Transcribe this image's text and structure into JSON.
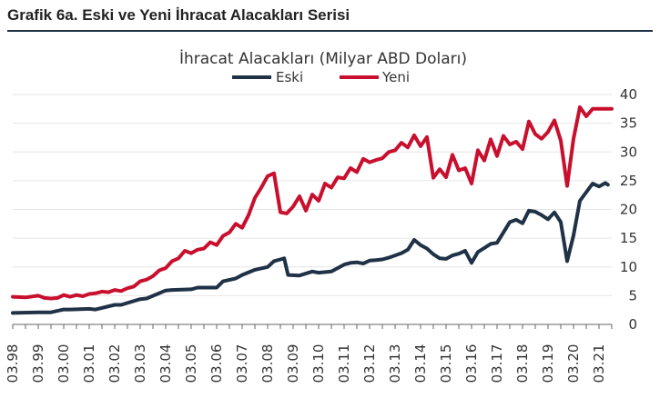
{
  "figure": {
    "title": "Grafik 6a. Eski ve Yeni İhracat Alacakları Serisi"
  },
  "colors": {
    "eski": "#1f3246",
    "yeni": "#c8102e",
    "grid": "#e6e6e6",
    "rule": "#1f3246"
  },
  "chart_data": {
    "type": "line",
    "title": "İhracat Alacakları (Milyar ABD Doları)",
    "xlabel": "",
    "ylabel": "",
    "ylim": [
      0,
      40
    ],
    "y_ticks": [
      0,
      5,
      10,
      15,
      20,
      25,
      30,
      35,
      40
    ],
    "y_axis_side": "right",
    "grid": "horizontal",
    "legend_placement": "top-center",
    "x_ticks": [
      "03.98",
      "03.99",
      "03.00",
      "03.01",
      "03.02",
      "03.03",
      "03.04",
      "03.05",
      "03.06",
      "03.07",
      "03.08",
      "03.09",
      "03.10",
      "03.11",
      "03.12",
      "03.13",
      "03.14",
      "03.15",
      "03.16",
      "03.17",
      "03.18",
      "03.19",
      "03.20",
      "03.21"
    ],
    "x_start": 1998.0,
    "x_end": 2021.5,
    "series": [
      {
        "name": "Eski",
        "color": "#1f3246",
        "x": [
          1998.0,
          1999.0,
          1999.5,
          2000.0,
          2000.25,
          2001.0,
          2001.25,
          2002.0,
          2002.25,
          2003.0,
          2003.25,
          2004.0,
          2004.25,
          2005.0,
          2005.25,
          2006.0,
          2006.25,
          2006.75,
          2007.0,
          2007.5,
          2008.0,
          2008.25,
          2008.5,
          2008.65,
          2008.8,
          2009.25,
          2009.75,
          2010.0,
          2010.5,
          2011.0,
          2011.25,
          2011.5,
          2011.75,
          2012.0,
          2012.25,
          2012.5,
          2012.75,
          2013.0,
          2013.25,
          2013.5,
          2013.75,
          2014.0,
          2014.25,
          2014.5,
          2014.75,
          2015.0,
          2015.25,
          2015.5,
          2015.75,
          2016.0,
          2016.25,
          2016.5,
          2016.75,
          2017.0,
          2017.25,
          2017.5,
          2017.75,
          2018.0,
          2018.25,
          2018.5,
          2018.75,
          2019.0,
          2019.25,
          2019.5,
          2019.75,
          2020.0,
          2020.25,
          2020.5,
          2020.75,
          2021.0,
          2021.25,
          2021.35
        ],
        "values": [
          2.0,
          2.1,
          2.1,
          2.6,
          2.6,
          2.7,
          2.6,
          3.4,
          3.4,
          4.4,
          4.5,
          5.9,
          6.0,
          6.1,
          6.4,
          6.4,
          7.5,
          8.0,
          8.6,
          9.5,
          10.0,
          11.0,
          11.3,
          11.5,
          8.6,
          8.5,
          9.2,
          9.0,
          9.2,
          10.4,
          10.7,
          10.8,
          10.6,
          11.1,
          11.2,
          11.3,
          11.6,
          12.0,
          12.4,
          13.0,
          14.7,
          13.8,
          13.2,
          12.2,
          11.5,
          11.4,
          12.0,
          12.3,
          12.8,
          10.7,
          12.6,
          13.3,
          14.0,
          14.2,
          16.0,
          17.8,
          18.2,
          17.6,
          19.8,
          19.6,
          19.0,
          18.3,
          19.5,
          17.8,
          11.0,
          15.5,
          21.5,
          23.0,
          24.5,
          24.0,
          24.6,
          24.3
        ],
        "note_x": "decimal years"
      },
      {
        "name": "Yeni",
        "color": "#c8102e",
        "x": [
          1998.0,
          1998.5,
          1999.0,
          1999.25,
          1999.5,
          1999.75,
          2000.0,
          2000.25,
          2000.5,
          2000.75,
          2001.0,
          2001.25,
          2001.5,
          2001.75,
          2002.0,
          2002.25,
          2002.5,
          2002.75,
          2003.0,
          2003.25,
          2003.5,
          2003.75,
          2004.0,
          2004.25,
          2004.5,
          2004.75,
          2005.0,
          2005.25,
          2005.5,
          2005.75,
          2006.0,
          2006.25,
          2006.5,
          2006.75,
          2007.0,
          2007.25,
          2007.5,
          2007.75,
          2008.0,
          2008.25,
          2008.5,
          2008.75,
          2009.0,
          2009.25,
          2009.5,
          2009.75,
          2010.0,
          2010.25,
          2010.5,
          2010.75,
          2011.0,
          2011.25,
          2011.5,
          2011.75,
          2012.0,
          2012.25,
          2012.5,
          2012.75,
          2013.0,
          2013.25,
          2013.5,
          2013.75,
          2014.0,
          2014.25,
          2014.5,
          2014.75,
          2015.0,
          2015.25,
          2015.5,
          2015.75,
          2016.0,
          2016.25,
          2016.5,
          2016.75,
          2017.0,
          2017.25,
          2017.5,
          2017.75,
          2018.0,
          2018.25,
          2018.5,
          2018.75,
          2019.0,
          2019.25,
          2019.5,
          2019.75,
          2020.0,
          2020.25,
          2020.5,
          2020.75,
          2021.0,
          2021.25,
          2021.5
        ],
        "values": [
          4.8,
          4.7,
          5.0,
          4.6,
          4.5,
          4.6,
          5.1,
          4.8,
          5.1,
          4.9,
          5.3,
          5.4,
          5.7,
          5.6,
          6.0,
          5.8,
          6.3,
          6.6,
          7.5,
          7.8,
          8.4,
          9.4,
          9.8,
          11.0,
          11.5,
          12.8,
          12.4,
          13.0,
          13.2,
          14.3,
          13.8,
          15.4,
          16.0,
          17.5,
          16.8,
          19.0,
          22.0,
          23.8,
          25.8,
          26.3,
          19.5,
          19.3,
          20.5,
          22.3,
          19.8,
          22.6,
          21.5,
          24.5,
          23.8,
          25.6,
          25.4,
          27.2,
          26.5,
          28.8,
          28.2,
          28.6,
          28.9,
          30.0,
          30.3,
          31.6,
          30.8,
          32.9,
          31.0,
          32.6,
          25.5,
          27.0,
          25.6,
          29.5,
          26.8,
          27.2,
          24.5,
          30.3,
          28.5,
          32.2,
          29.3,
          32.8,
          31.3,
          31.8,
          30.5,
          35.3,
          33.1,
          32.3,
          33.5,
          35.5,
          32.0,
          24.1,
          32.3,
          37.8,
          36.2,
          37.5,
          37.5,
          37.5,
          37.5
        ],
        "note_x": "decimal years"
      }
    ]
  }
}
